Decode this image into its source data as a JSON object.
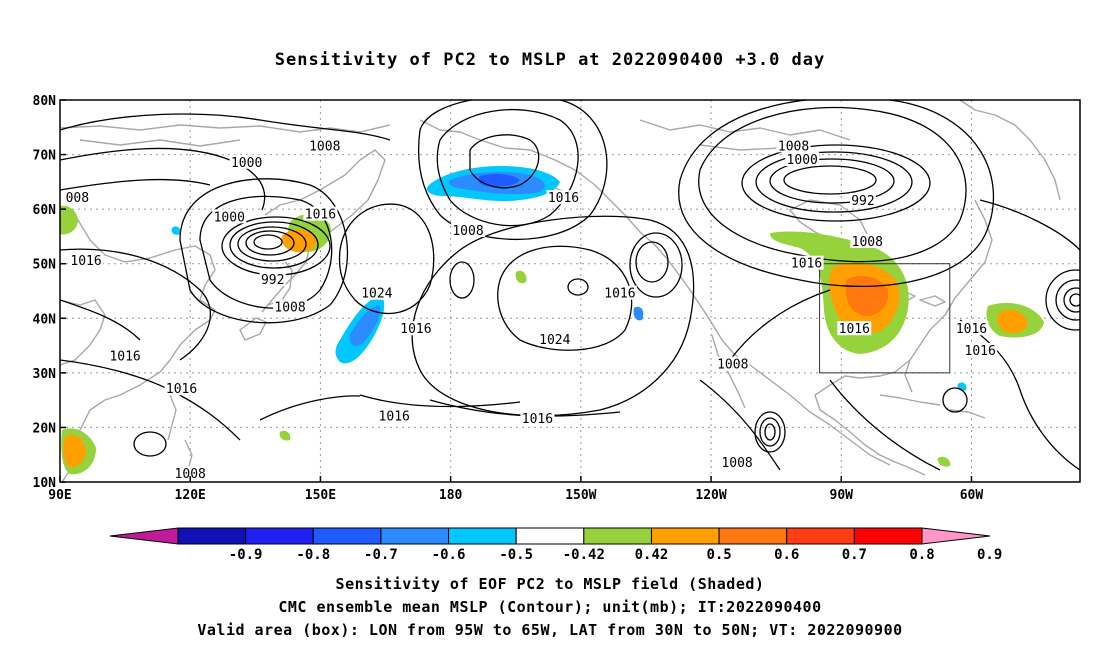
{
  "title": "Sensitivity of PC2 to MSLP at 2022090400 +3.0 day",
  "lat_labels": [
    "80N",
    "70N",
    "60N",
    "50N",
    "40N",
    "30N",
    "20N",
    "10N"
  ],
  "lon_labels": [
    "90E",
    "120E",
    "150E",
    "180",
    "150W",
    "120W",
    "90W",
    "60W"
  ],
  "contour_labels": [
    {
      "text": "1008",
      "lon": 151,
      "lat": 71.5
    },
    {
      "text": "1000",
      "lon": 133,
      "lat": 68.5
    },
    {
      "text": "008",
      "lon": 94,
      "lat": 62
    },
    {
      "text": "1000",
      "lon": 129,
      "lat": 58.5
    },
    {
      "text": "1016",
      "lon": 150,
      "lat": 59
    },
    {
      "text": "1016",
      "lon": 96,
      "lat": 50.5
    },
    {
      "text": "992",
      "lon": 139,
      "lat": 47
    },
    {
      "text": "1008",
      "lon": 143,
      "lat": 42
    },
    {
      "text": "1024",
      "lon": 163,
      "lat": 44.5
    },
    {
      "text": "1008",
      "lon": 184,
      "lat": 56
    },
    {
      "text": "1016",
      "lon": 206,
      "lat": 62
    },
    {
      "text": "1016",
      "lon": 219,
      "lat": 44.5
    },
    {
      "text": "1024",
      "lon": 204,
      "lat": 36
    },
    {
      "text": "1016",
      "lon": 172,
      "lat": 38
    },
    {
      "text": "1016",
      "lon": 105,
      "lat": 33
    },
    {
      "text": "1016",
      "lon": 118,
      "lat": 27
    },
    {
      "text": "1016",
      "lon": 167,
      "lat": 22
    },
    {
      "text": "1016",
      "lon": 200,
      "lat": 21.5
    },
    {
      "text": "1008",
      "lon": 120,
      "lat": 11.5
    },
    {
      "text": "1008",
      "lon": 259,
      "lat": 71.5
    },
    {
      "text": "1000",
      "lon": 261,
      "lat": 69
    },
    {
      "text": "992",
      "lon": 275,
      "lat": 61.5
    },
    {
      "text": "1008",
      "lon": 276,
      "lat": 54
    },
    {
      "text": "1016",
      "lon": 262,
      "lat": 50
    },
    {
      "text": "1016",
      "lon": 273,
      "lat": 38
    },
    {
      "text": "1008",
      "lon": 245,
      "lat": 31.5
    },
    {
      "text": "1016",
      "lon": 300,
      "lat": 38
    },
    {
      "text": "1016",
      "lon": 302,
      "lat": 34
    },
    {
      "text": "1008",
      "lon": 246,
      "lat": 13.5
    }
  ],
  "colorbar": {
    "ticks": [
      "-0.9",
      "-0.8",
      "-0.7",
      "-0.6",
      "-0.5",
      "-0.42",
      "0.42",
      "0.5",
      "0.6",
      "0.7",
      "0.8",
      "0.9"
    ],
    "colors": [
      "#c01a9a",
      "#1010b4",
      "#2020f0",
      "#1e5cff",
      "#2c8cff",
      "#00c8ff",
      "#ffffff",
      "#96d23c",
      "#ffa000",
      "#ff7810",
      "#ff3c14",
      "#ff0000",
      "#ff96c8"
    ]
  },
  "valid_box": {
    "lon_min": 265,
    "lon_max": 295,
    "lat_min": 30,
    "lat_max": 50
  },
  "footer": {
    "line1": "Sensitivity of EOF PC2 to MSLP field (Shaded)",
    "line2": "CMC ensemble mean MSLP (Contour); unit(mb); IT:2022090400",
    "line3": "Valid area (box): LON from 95W to 65W, LAT from 30N to 50N; VT: 2022090900"
  }
}
